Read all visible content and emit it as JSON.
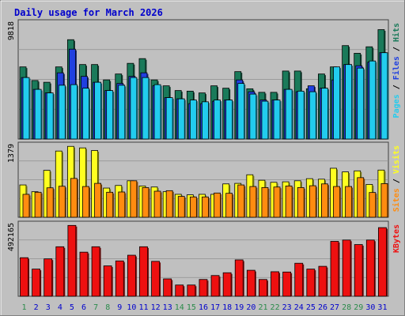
{
  "title": "Daily usage for March 2026",
  "colors": {
    "frame_bg": "#C0C0C0",
    "plot_bg": "#C0C0C0",
    "title": "#0000CC",
    "hits": "#1A7A5A",
    "files": "#2040E0",
    "pages": "#22CCEE",
    "visits": "#FFFF20",
    "sites": "#FF8C10",
    "kbytes": "#EE1010",
    "weekday_label": "#0000CC",
    "weekend_label": "#2A8A4A"
  },
  "chart_data": [
    {
      "type": "bar",
      "name": "hits-files-pages",
      "categories": [
        "1",
        "2",
        "3",
        "4",
        "5",
        "6",
        "7",
        "8",
        "9",
        "10",
        "11",
        "12",
        "13",
        "14",
        "15",
        "16",
        "17",
        "18",
        "19",
        "20",
        "21",
        "22",
        "23",
        "24",
        "25",
        "26",
        "27",
        "28",
        "29",
        "30",
        "31"
      ],
      "ymax_label": "9818",
      "ylim": [
        0,
        9818
      ],
      "legend": [
        "Pages",
        "Files",
        "Hits"
      ],
      "series": [
        {
          "name": "Hits",
          "values": [
            6100,
            4950,
            4800,
            6100,
            8400,
            6300,
            6300,
            5000,
            5500,
            6400,
            6800,
            5000,
            4500,
            4100,
            4050,
            3900,
            4500,
            4300,
            5700,
            4250,
            3950,
            3950,
            5750,
            5750,
            4250,
            5500,
            6100,
            7900,
            7250,
            7800,
            9250
          ]
        },
        {
          "name": "Files",
          "values": [
            5200,
            4200,
            3900,
            5600,
            7600,
            5300,
            4800,
            4100,
            4700,
            5300,
            5600,
            4500,
            3500,
            3400,
            3000,
            3000,
            3200,
            3300,
            5000,
            4000,
            3300,
            3300,
            4200,
            4000,
            4500,
            4300,
            5000,
            6300,
            6200,
            6500,
            7300
          ]
        },
        {
          "name": "Pages",
          "values": [
            5200,
            4200,
            3900,
            4550,
            4600,
            4300,
            4800,
            4100,
            4550,
            5200,
            5200,
            4600,
            3500,
            3400,
            3300,
            3150,
            3300,
            3300,
            4700,
            3800,
            3200,
            3300,
            4200,
            4050,
            4000,
            4300,
            6100,
            6300,
            6000,
            6600,
            7300
          ]
        }
      ]
    },
    {
      "type": "bar",
      "name": "visits-sites",
      "categories": [
        "1",
        "2",
        "3",
        "4",
        "5",
        "6",
        "7",
        "8",
        "9",
        "10",
        "11",
        "12",
        "13",
        "14",
        "15",
        "16",
        "17",
        "18",
        "19",
        "20",
        "21",
        "22",
        "23",
        "24",
        "25",
        "26",
        "27",
        "28",
        "29",
        "30",
        "31"
      ],
      "ymax_label": "1379",
      "ylim": [
        0,
        1379
      ],
      "legend": [
        "Sites",
        "Visits"
      ],
      "series": [
        {
          "name": "Visits",
          "values": [
            620,
            490,
            900,
            1270,
            1360,
            1330,
            1280,
            560,
            610,
            700,
            600,
            580,
            490,
            440,
            430,
            440,
            440,
            640,
            650,
            815,
            710,
            670,
            680,
            700,
            740,
            730,
            940,
            870,
            890,
            630,
            905
          ]
        },
        {
          "name": "Sites",
          "values": [
            440,
            480,
            565,
            595,
            745,
            590,
            650,
            480,
            485,
            700,
            570,
            500,
            510,
            400,
            390,
            390,
            465,
            460,
            620,
            590,
            570,
            580,
            600,
            570,
            605,
            640,
            590,
            590,
            760,
            475,
            645
          ]
        }
      ]
    },
    {
      "type": "bar",
      "name": "kbytes",
      "categories": [
        "1",
        "2",
        "3",
        "4",
        "5",
        "6",
        "7",
        "8",
        "9",
        "10",
        "11",
        "12",
        "13",
        "14",
        "15",
        "16",
        "17",
        "18",
        "19",
        "20",
        "21",
        "22",
        "23",
        "24",
        "25",
        "26",
        "27",
        "28",
        "29",
        "30",
        "31"
      ],
      "ymax_label": "492165",
      "ylim": [
        0,
        492165
      ],
      "legend": [
        "KBytes"
      ],
      "series": [
        {
          "name": "KBytes",
          "values": [
            264000,
            186000,
            256000,
            339000,
            485000,
            302000,
            339000,
            208000,
            242000,
            281000,
            339000,
            239000,
            119000,
            77000,
            77000,
            115000,
            142000,
            161000,
            249000,
            178000,
            115000,
            168000,
            166000,
            226000,
            186000,
            205000,
            376000,
            385000,
            354000,
            385000,
            470000
          ]
        }
      ]
    }
  ],
  "weekend_days": [
    1,
    7,
    8,
    14,
    15,
    21,
    22,
    28,
    29
  ]
}
